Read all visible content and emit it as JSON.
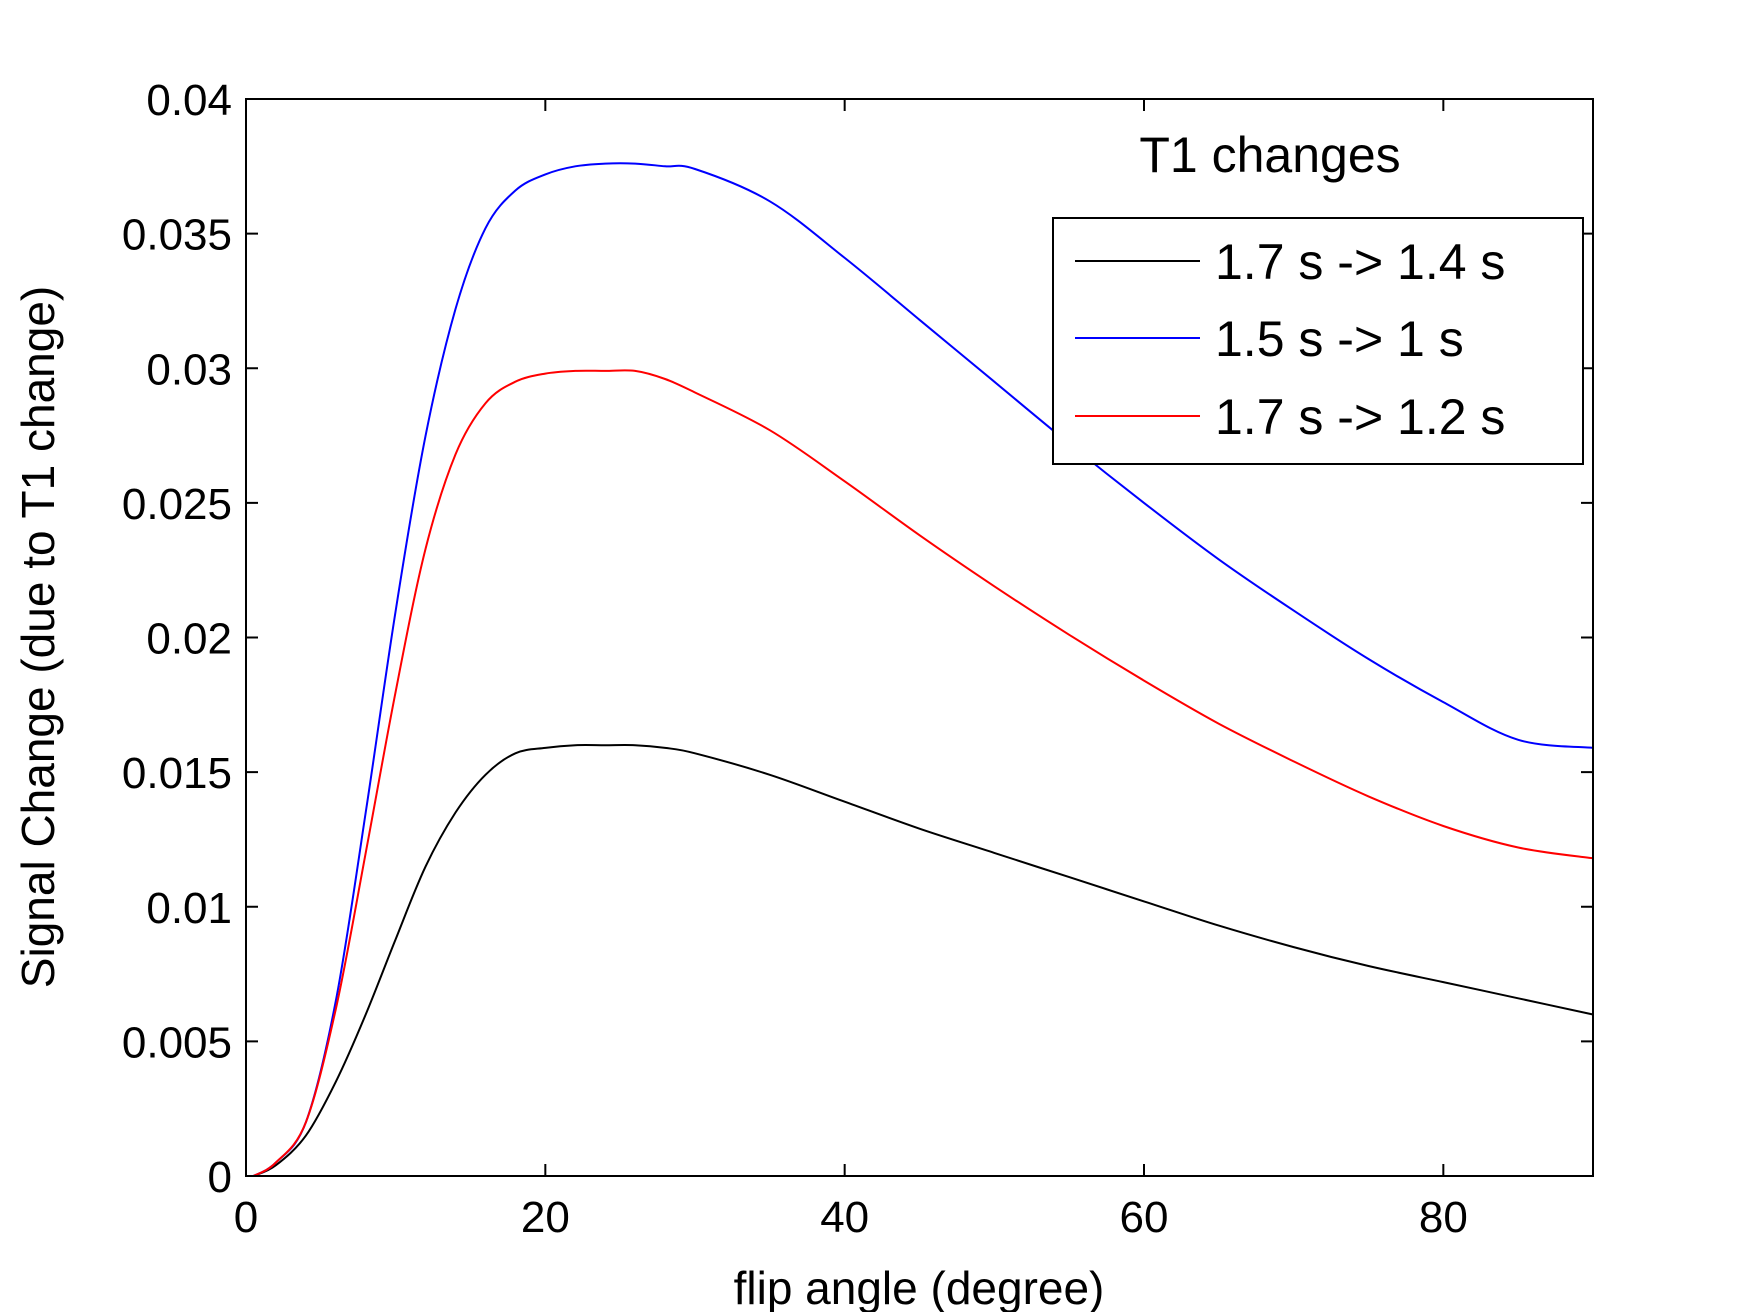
{
  "chart_data": {
    "type": "line",
    "title": "",
    "xlabel": "flip angle (degree)",
    "ylabel": "Signal Change (due to T1 change)",
    "xlim": [
      0,
      90
    ],
    "ylim": [
      0,
      0.04
    ],
    "x_ticks": [
      0,
      20,
      40,
      60,
      80
    ],
    "x_tick_labels": [
      "0",
      "20",
      "40",
      "60",
      "80"
    ],
    "y_ticks": [
      0,
      0.005,
      0.01,
      0.015,
      0.02,
      0.025,
      0.03,
      0.035,
      0.04
    ],
    "y_tick_labels": [
      "0",
      "0.005",
      "0.01",
      "0.015",
      "0.02",
      "0.025",
      "0.03",
      "0.035",
      "0.04"
    ],
    "grid": false,
    "legend": {
      "title": "T1 changes",
      "placement": "top-right"
    },
    "x": [
      0.5,
      2,
      4,
      6,
      8,
      10,
      12,
      14,
      16,
      18,
      20,
      22,
      24,
      26,
      28,
      30,
      35,
      40,
      45,
      50,
      55,
      60,
      65,
      70,
      75,
      80,
      85,
      90
    ],
    "series": [
      {
        "name": "1.7 s -> 1.4 s",
        "color": "#000000",
        "values": [
          0.0,
          0.0004,
          0.0015,
          0.0035,
          0.006,
          0.0088,
          0.0115,
          0.0135,
          0.0149,
          0.0157,
          0.0159,
          0.016,
          0.016,
          0.016,
          0.0159,
          0.0157,
          0.0149,
          0.0139,
          0.0129,
          0.012,
          0.0111,
          0.0102,
          0.0093,
          0.0085,
          0.0078,
          0.0072,
          0.0066,
          0.006
        ]
      },
      {
        "name": "1.5 s -> 1 s",
        "color": "#0000ff",
        "values": [
          0.0,
          0.0005,
          0.002,
          0.0065,
          0.0135,
          0.021,
          0.0275,
          0.0322,
          0.0352,
          0.0366,
          0.0372,
          0.0375,
          0.0376,
          0.0376,
          0.0375,
          0.0374,
          0.0362,
          0.0341,
          0.0318,
          0.0295,
          0.0272,
          0.025,
          0.0229,
          0.021,
          0.0192,
          0.0176,
          0.0162,
          0.0159
        ]
      },
      {
        "name": "1.7 s -> 1.2 s",
        "color": "#ff0000",
        "values": [
          0.0,
          0.0005,
          0.002,
          0.0062,
          0.012,
          0.018,
          0.0233,
          0.0268,
          0.0287,
          0.0295,
          0.0298,
          0.0299,
          0.0299,
          0.0299,
          0.0296,
          0.0291,
          0.0277,
          0.0258,
          0.0238,
          0.0219,
          0.0201,
          0.0184,
          0.0168,
          0.0154,
          0.0141,
          0.013,
          0.0122,
          0.0118
        ]
      }
    ]
  }
}
